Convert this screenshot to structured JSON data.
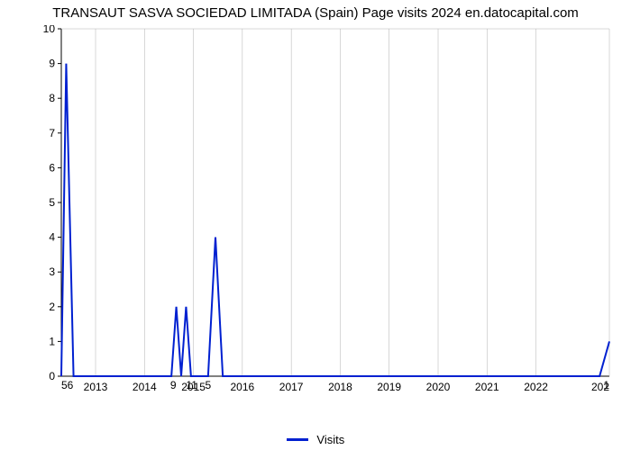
{
  "title": "TRANSAUT SASVA SOCIEDAD LIMITADA (Spain) Page visits 2024 en.datocapital.com",
  "chart": {
    "type": "line",
    "background_color": "#ffffff",
    "grid_color": "#b0b0b0",
    "grid_width": 0.5,
    "axis_color": "#000000",
    "line_color": "#0020d0",
    "line_width": 2,
    "title_fontsize": 15,
    "tick_fontsize": 12,
    "ylim": [
      0,
      10
    ],
    "yticks": [
      0,
      1,
      2,
      3,
      4,
      5,
      6,
      7,
      8,
      9,
      10
    ],
    "xlim": [
      2012.3,
      2023.5
    ],
    "xticks": [
      2013,
      2014,
      2015,
      2016,
      2017,
      2018,
      2019,
      2020,
      2021,
      2022
    ],
    "xtick_right_partial": "202",
    "series": {
      "points": [
        [
          2012.3,
          0
        ],
        [
          2012.4,
          9
        ],
        [
          2012.55,
          0
        ],
        [
          2014.55,
          0
        ],
        [
          2014.65,
          2
        ],
        [
          2014.75,
          0
        ],
        [
          2014.85,
          2
        ],
        [
          2014.95,
          0
        ],
        [
          2015.3,
          0
        ],
        [
          2015.45,
          4
        ],
        [
          2015.6,
          0
        ],
        [
          2023.3,
          0
        ],
        [
          2023.5,
          1
        ]
      ],
      "labels": [
        {
          "x": 2012.3,
          "y": 0,
          "text": "56",
          "dy": 14,
          "anchor": "start"
        },
        {
          "x": 2014.65,
          "y": 2,
          "text": "9",
          "dy": 14,
          "anchor": "end"
        },
        {
          "x": 2014.85,
          "y": 2,
          "text": "11",
          "dy": 14,
          "anchor": "start"
        },
        {
          "x": 2015.3,
          "y": 0,
          "text": "5",
          "dy": 14,
          "anchor": "middle"
        },
        {
          "x": 2023.5,
          "y": 1,
          "text": "1",
          "dy": 14,
          "anchor": "end"
        }
      ]
    }
  },
  "legend": {
    "label": "Visits"
  }
}
